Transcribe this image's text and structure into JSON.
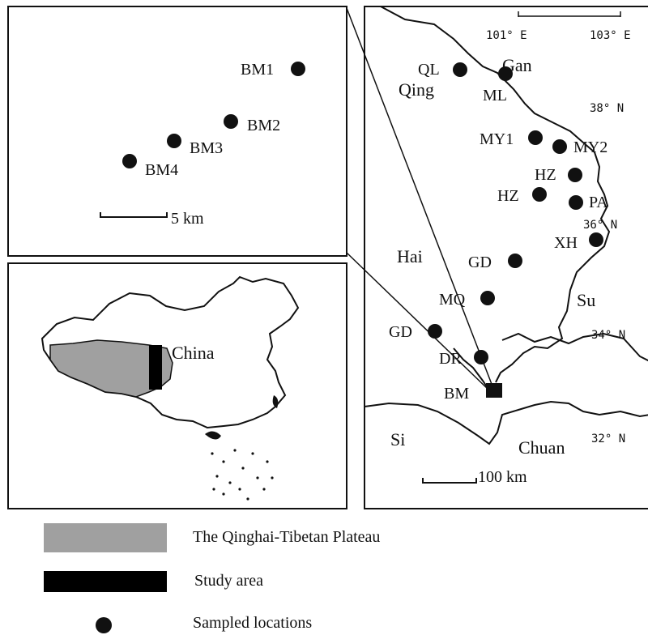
{
  "inset_detail": {
    "sites": [
      {
        "name": "BM1"
      },
      {
        "name": "BM2"
      },
      {
        "name": "BM3"
      },
      {
        "name": "BM4"
      }
    ],
    "scale_label": "5 km"
  },
  "overview": {
    "country_label": "China"
  },
  "main_map": {
    "coords_top": [
      "101° E",
      "103° E"
    ],
    "coords_right": [
      "38° N",
      "36° N",
      "34° N",
      "32° N"
    ],
    "region_labels": {
      "qing": "Qing",
      "gan": "Gan",
      "hai": "Hai",
      "su": "Su",
      "si": "Si",
      "chuan": "Chuan"
    },
    "sites": [
      "QL",
      "ML",
      "MY1",
      "MY2",
      "HZ",
      "HZ",
      "PA",
      "XH",
      "GD",
      "MQ",
      "GD",
      "DR",
      "BM"
    ],
    "scale_label": "100 km"
  },
  "legend": {
    "items": [
      {
        "label": "The Qinghai-Tibetan Plateau",
        "swatch": "#a0a0a0"
      },
      {
        "label": "Study area",
        "swatch": "#000000"
      },
      {
        "label": "Sampled locations",
        "swatch": "dot"
      }
    ]
  }
}
